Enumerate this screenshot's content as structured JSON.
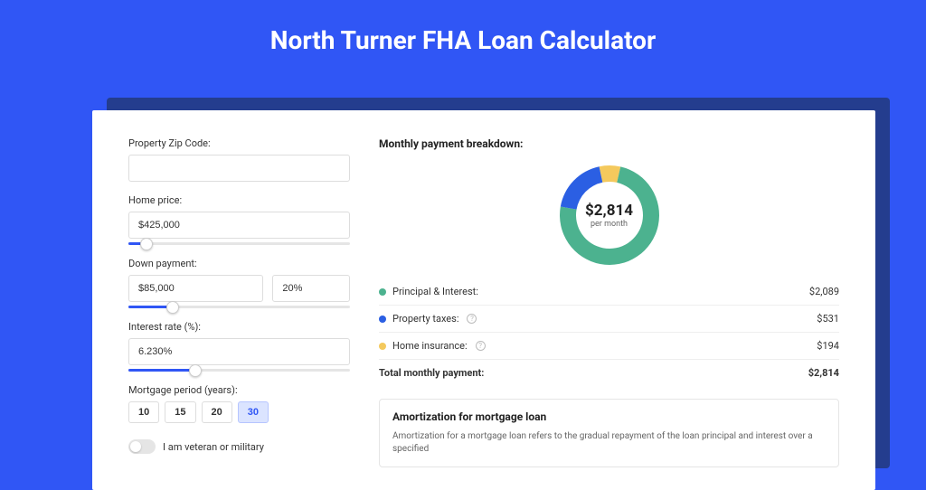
{
  "title": "North Turner FHA Loan Calculator",
  "colors": {
    "page_bg": "#3056f5",
    "card_bg": "#ffffff",
    "shadow_bg": "#243d8e",
    "principal": "#4cb28f",
    "taxes": "#2b5fe3",
    "insurance": "#f4c95d"
  },
  "form": {
    "zip_label": "Property Zip Code:",
    "zip_value": "",
    "home_price_label": "Home price:",
    "home_price_value": "$425,000",
    "home_price_slider_pct": 8,
    "down_payment_label": "Down payment:",
    "down_payment_value": "$85,000",
    "down_payment_pct": "20%",
    "down_payment_slider_pct": 20,
    "interest_label": "Interest rate (%):",
    "interest_value": "6.230%",
    "interest_slider_pct": 30,
    "period_label": "Mortgage period (years):",
    "period_options": [
      "10",
      "15",
      "20",
      "30"
    ],
    "period_selected": "30",
    "veteran_label": "I am veteran or military",
    "veteran_on": false
  },
  "breakdown": {
    "title": "Monthly payment breakdown:",
    "center_amount": "$2,814",
    "center_sub": "per month",
    "donut": {
      "slices": [
        {
          "key": "insurance",
          "pct": 6.9,
          "color": "#f4c95d"
        },
        {
          "key": "principal",
          "pct": 74.2,
          "color": "#4cb28f"
        },
        {
          "key": "taxes",
          "pct": 18.9,
          "color": "#2b5fe3"
        }
      ],
      "thickness": 18
    },
    "rows": [
      {
        "label": "Principal & Interest:",
        "value": "$2,089",
        "color": "#4cb28f",
        "info": false
      },
      {
        "label": "Property taxes:",
        "value": "$531",
        "color": "#2b5fe3",
        "info": true
      },
      {
        "label": "Home insurance:",
        "value": "$194",
        "color": "#f4c95d",
        "info": true
      }
    ],
    "total_label": "Total monthly payment:",
    "total_value": "$2,814"
  },
  "amortization": {
    "title": "Amortization for mortgage loan",
    "text": "Amortization for a mortgage loan refers to the gradual repayment of the loan principal and interest over a specified"
  }
}
